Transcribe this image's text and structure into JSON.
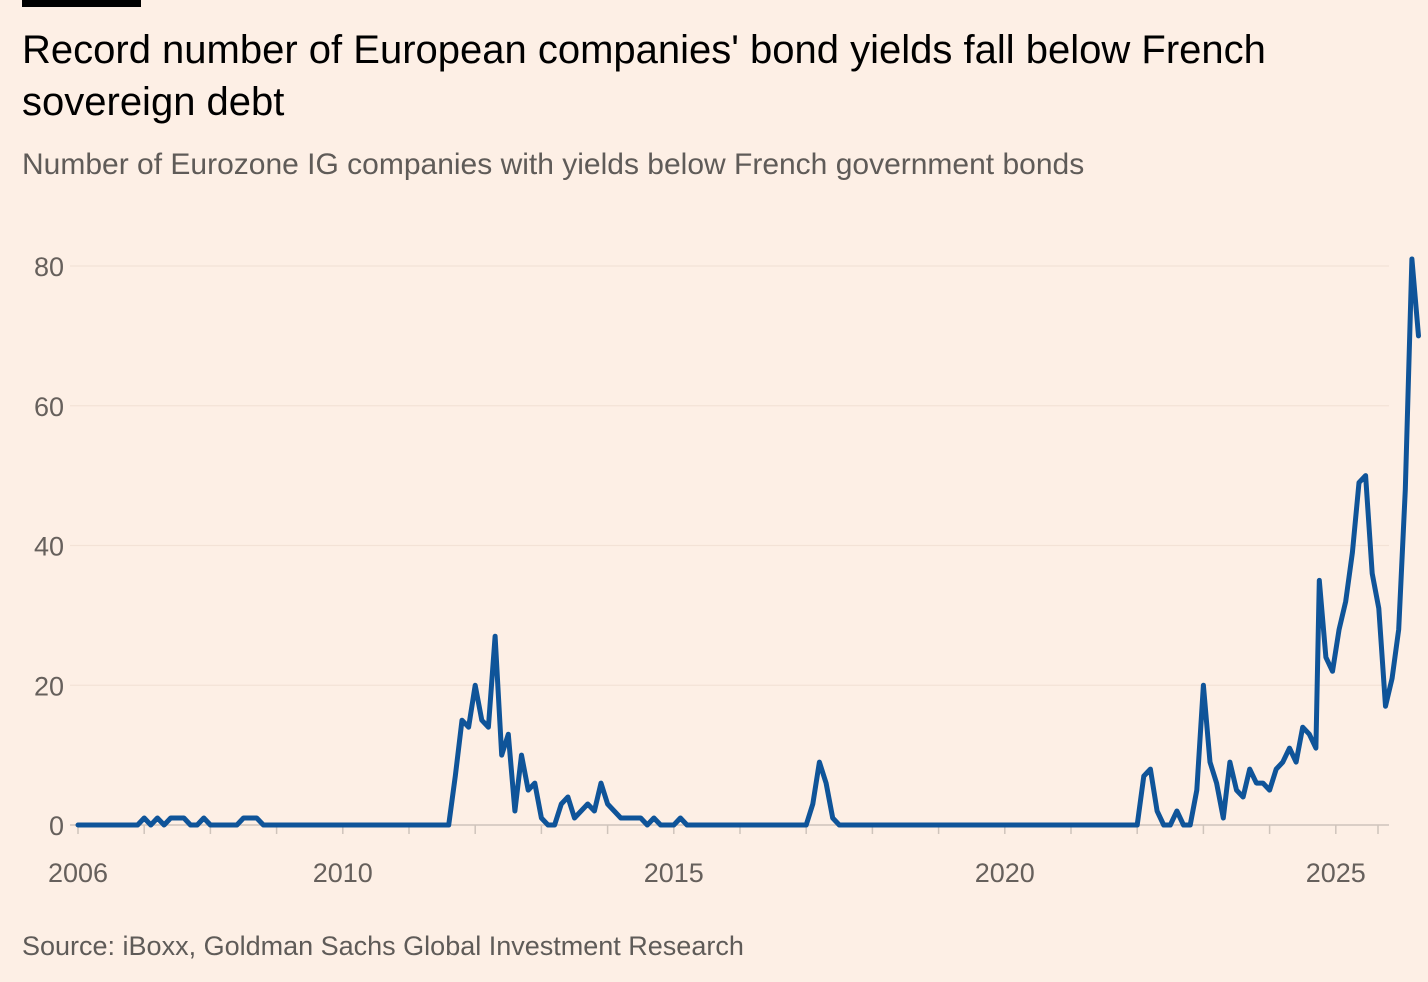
{
  "title": "Record number of European companies' bond yields fall below French sovereign debt",
  "subtitle": "Number of Eurozone IG companies with yields below French government bonds",
  "source": "Source: iBoxx, Goldman Sachs Global Investment Research",
  "colors": {
    "background": "#fdefe5",
    "line": "#0f5499",
    "grid": "#f3e2d6",
    "axis_text": "#66605c"
  },
  "chart_data": {
    "type": "line",
    "title": "Record number of European companies' bond yields fall below French sovereign debt",
    "subtitle": "Number of Eurozone IG companies with yields below French government bonds",
    "xlabel": "",
    "ylabel": "",
    "xlim": [
      2006,
      2025.75
    ],
    "ylim": [
      0,
      80
    ],
    "x_ticks": [
      2006,
      2010,
      2015,
      2020,
      2025
    ],
    "y_ticks": [
      0,
      20,
      40,
      60,
      80
    ],
    "grid": "horizontal",
    "legend": "none",
    "series": [
      {
        "values": [
          [
            2006.0,
            0
          ],
          [
            2006.9,
            0
          ],
          [
            2007.0,
            1
          ],
          [
            2007.1,
            0
          ],
          [
            2007.2,
            1
          ],
          [
            2007.3,
            0
          ],
          [
            2007.4,
            1
          ],
          [
            2007.6,
            1
          ],
          [
            2007.7,
            0
          ],
          [
            2007.8,
            0
          ],
          [
            2007.9,
            1
          ],
          [
            2008.0,
            0
          ],
          [
            2008.4,
            0
          ],
          [
            2008.5,
            1
          ],
          [
            2008.7,
            1
          ],
          [
            2008.8,
            0
          ],
          [
            2011.6,
            0
          ],
          [
            2011.7,
            7
          ],
          [
            2011.8,
            15
          ],
          [
            2011.9,
            14
          ],
          [
            2012.0,
            20
          ],
          [
            2012.1,
            15
          ],
          [
            2012.2,
            14
          ],
          [
            2012.3,
            27
          ],
          [
            2012.4,
            10
          ],
          [
            2012.5,
            13
          ],
          [
            2012.6,
            2
          ],
          [
            2012.7,
            10
          ],
          [
            2012.8,
            5
          ],
          [
            2012.9,
            6
          ],
          [
            2013.0,
            1
          ],
          [
            2013.1,
            0
          ],
          [
            2013.2,
            0
          ],
          [
            2013.3,
            3
          ],
          [
            2013.4,
            4
          ],
          [
            2013.5,
            1
          ],
          [
            2013.6,
            2
          ],
          [
            2013.7,
            3
          ],
          [
            2013.8,
            2
          ],
          [
            2013.9,
            6
          ],
          [
            2014.0,
            3
          ],
          [
            2014.2,
            1
          ],
          [
            2014.5,
            1
          ],
          [
            2014.6,
            0
          ],
          [
            2014.7,
            1
          ],
          [
            2014.8,
            0
          ],
          [
            2015.0,
            0
          ],
          [
            2015.1,
            1
          ],
          [
            2015.2,
            0
          ],
          [
            2017.0,
            0
          ],
          [
            2017.1,
            3
          ],
          [
            2017.2,
            9
          ],
          [
            2017.3,
            6
          ],
          [
            2017.4,
            1
          ],
          [
            2017.5,
            0
          ],
          [
            2022.0,
            0
          ],
          [
            2022.1,
            7
          ],
          [
            2022.2,
            8
          ],
          [
            2022.3,
            2
          ],
          [
            2022.4,
            0
          ],
          [
            2022.5,
            0
          ],
          [
            2022.6,
            2
          ],
          [
            2022.7,
            0
          ],
          [
            2022.8,
            0
          ],
          [
            2022.9,
            5
          ],
          [
            2023.0,
            20
          ],
          [
            2023.1,
            9
          ],
          [
            2023.2,
            6
          ],
          [
            2023.3,
            1
          ],
          [
            2023.4,
            9
          ],
          [
            2023.5,
            5
          ],
          [
            2023.6,
            4
          ],
          [
            2023.7,
            8
          ],
          [
            2023.8,
            6
          ],
          [
            2023.9,
            6
          ],
          [
            2024.0,
            5
          ],
          [
            2024.1,
            8
          ],
          [
            2024.2,
            9
          ],
          [
            2024.3,
            11
          ],
          [
            2024.4,
            9
          ],
          [
            2024.5,
            14
          ],
          [
            2024.6,
            13
          ],
          [
            2024.7,
            11
          ],
          [
            2024.75,
            35
          ],
          [
            2024.85,
            24
          ],
          [
            2024.95,
            22
          ],
          [
            2025.05,
            28
          ],
          [
            2025.15,
            32
          ],
          [
            2025.25,
            39
          ],
          [
            2025.35,
            49
          ],
          [
            2025.45,
            50
          ],
          [
            2025.55,
            36
          ],
          [
            2025.65,
            31
          ],
          [
            2025.75,
            17
          ],
          [
            2025.85,
            21
          ],
          [
            2025.95,
            28
          ],
          [
            2026.05,
            48
          ],
          [
            2026.15,
            81
          ],
          [
            2026.25,
            70
          ]
        ]
      }
    ]
  }
}
